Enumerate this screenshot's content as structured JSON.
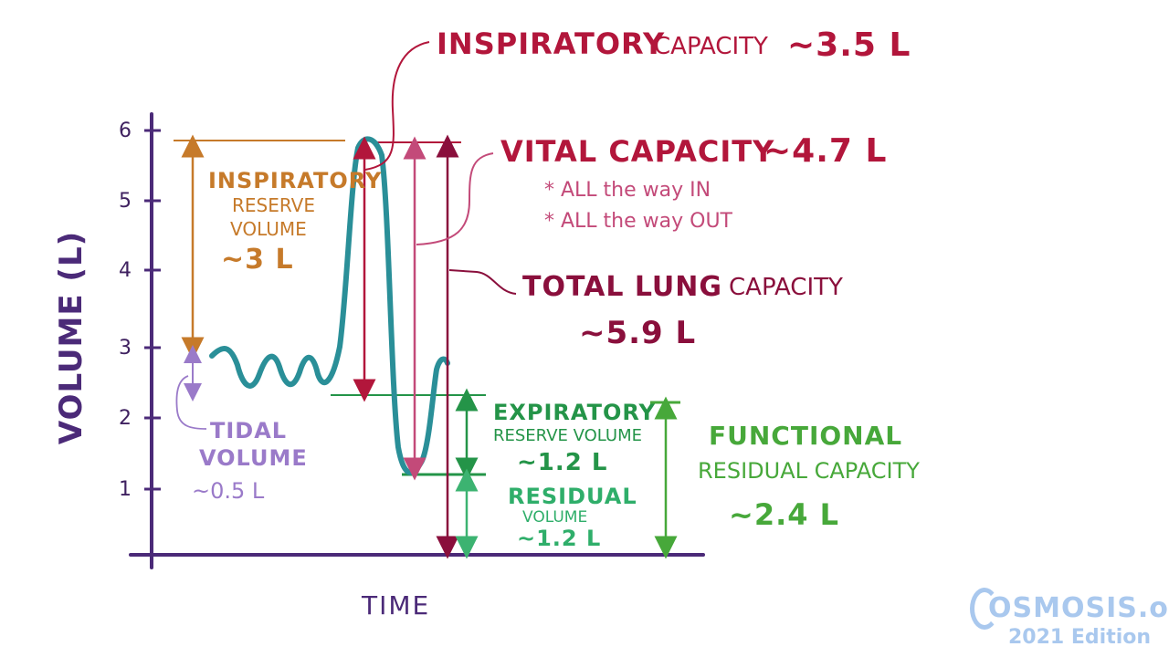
{
  "axis": {
    "y_label": "VOLUME (L)",
    "x_label": "TIME",
    "y_ticks": [
      "6",
      "5",
      "4",
      "3",
      "2",
      "1"
    ]
  },
  "inspiratory_capacity": {
    "title": "INSPIRATORY",
    "sub": "CAPACITY",
    "value": "~3.5 L"
  },
  "vital_capacity": {
    "title": "VITAL CAPACITY",
    "value": "~4.7 L",
    "note1": "* ALL the way IN",
    "note2": "* ALL the way OUT"
  },
  "total_lung_capacity": {
    "title": "TOTAL LUNG",
    "sub": "CAPACITY",
    "value": "~5.9 L"
  },
  "inspiratory_reserve_volume": {
    "line1": "INSPIRATORY",
    "line2": "RESERVE",
    "line3": "VOLUME",
    "value": "~3 L"
  },
  "tidal_volume": {
    "line1": "TIDAL",
    "line2": "VOLUME",
    "value": "~0.5 L"
  },
  "expiratory_reserve_volume": {
    "line1": "EXPIRATORY",
    "line2": "RESERVE VOLUME",
    "value": "~1.2 L"
  },
  "residual_volume": {
    "line1": "RESIDUAL",
    "line2": "VOLUME",
    "value": "~1.2 L"
  },
  "functional_residual_capacity": {
    "line1": "FUNCTIONAL",
    "line2": "RESIDUAL CAPACITY",
    "value": "~2.4 L"
  },
  "watermark": {
    "brand": "OSMOSIS.org",
    "edition": "2021 Edition"
  },
  "colors": {
    "axis": "#4b2a78",
    "trace": "#2a8f98",
    "inspiratory_reserve": "#c67a2a",
    "inspiratory_capacity": "#b2163b",
    "vital_capacity": "#c34a79",
    "total_lung_capacity": "#8a0f3c",
    "tidal": "#9a7ac9",
    "expiratory_reserve": "#249448",
    "residual": "#3cb371",
    "functional_residual": "#47a83a"
  }
}
